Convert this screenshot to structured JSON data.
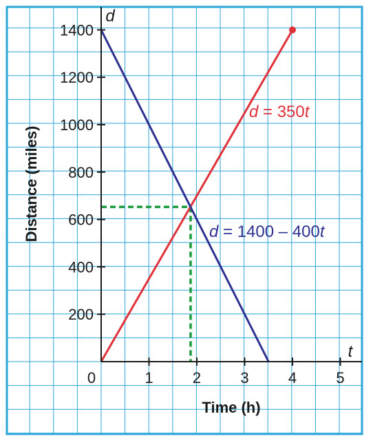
{
  "chart_data": {
    "type": "line",
    "xlabel": "Time (h)",
    "ylabel": "Distance (miles)",
    "x_var": "t",
    "y_var": "d",
    "origin_label": "0",
    "xlim": [
      0,
      5.5
    ],
    "ylim": [
      0,
      1500
    ],
    "x_ticks": [
      "1",
      "2",
      "3",
      "4",
      "5"
    ],
    "x_tick_values": [
      1,
      2,
      3,
      4,
      5
    ],
    "y_ticks": [
      "200",
      "400",
      "600",
      "800",
      "1000",
      "1200",
      "1400"
    ],
    "y_tick_values": [
      200,
      400,
      600,
      800,
      1000,
      1200,
      1400
    ],
    "grid": true,
    "series": [
      {
        "name": "d = 350t",
        "label_prefix": "d",
        "label_rest": " = 350",
        "label_suffix": "t",
        "color": "#e0313a",
        "points": [
          [
            0,
            0
          ],
          [
            4,
            1400
          ]
        ],
        "end_marker": true
      },
      {
        "name": "d = 1400 – 400t",
        "label_prefix": "d",
        "label_rest": " = 1400 – 400",
        "label_suffix": "t",
        "color": "#2e3192",
        "points": [
          [
            0,
            1400
          ],
          [
            3.5,
            0
          ]
        ],
        "end_marker": false
      }
    ],
    "intersection": {
      "x": 1.87,
      "y": 653,
      "color": "#1a9a3a",
      "style": "dashed"
    },
    "colors": {
      "grid": "#2aa6d9",
      "border": "#2aa6d9",
      "axis": "#1a1a1a"
    }
  }
}
